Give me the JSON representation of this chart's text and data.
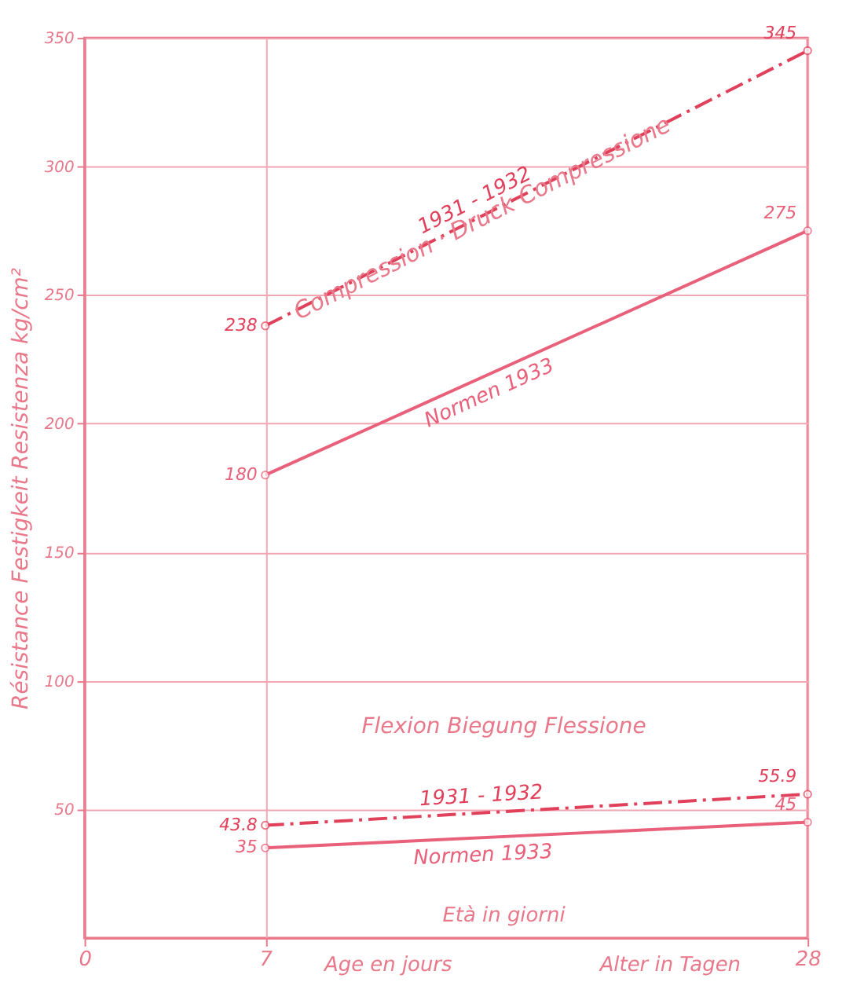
{
  "chart_data": {
    "type": "line",
    "ylabel": "Résistance    Festigkeit    Resistenza    kg/cm²",
    "x": [
      7,
      28
    ],
    "series": [
      {
        "name": "1931 - 1932",
        "color": "#e0405a",
        "values": [
          238,
          345
        ],
        "line_style": "dashed"
      },
      {
        "name": "Normen 1933",
        "color": "#e8607a",
        "values": [
          180,
          275
        ],
        "line_style": "solid"
      },
      {
        "name": "1931 - 1932",
        "color": "#e0405a",
        "values": [
          43.8,
          55.9
        ],
        "line_style": "dashed"
      },
      {
        "name": "Normen 1933",
        "color": "#e8607a",
        "values": [
          35,
          45
        ],
        "line_style": "solid"
      }
    ],
    "xlim": [
      0,
      28
    ],
    "xticks": [
      0,
      7,
      28
    ],
    "ylim": [
      0,
      350
    ],
    "yticks": [
      50,
      100,
      150,
      200,
      250,
      300,
      350
    ],
    "grid": true,
    "marker": "circle",
    "data_labels": true,
    "annotations": [
      "Compression · Druck   Compressione",
      "Flexion       Biegung       Flessione",
      "Età in giorni",
      "Age en jours",
      "Alter in Tagen"
    ]
  }
}
